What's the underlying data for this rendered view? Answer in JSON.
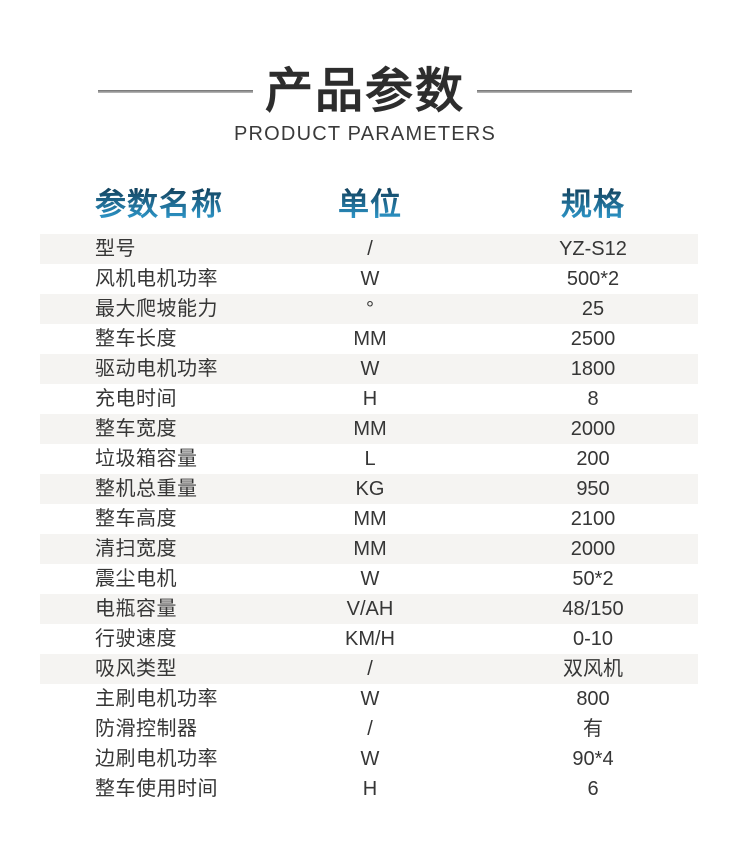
{
  "header": {
    "title": "产品参数",
    "subtitle": "PRODUCT PARAMETERS"
  },
  "table": {
    "columns": [
      "参数名称",
      "单位",
      "规格"
    ],
    "rows": [
      {
        "name": "型号",
        "unit": "/",
        "spec": "YZ-S12",
        "shaded": true
      },
      {
        "name": "风机电机功率",
        "unit": "W",
        "spec": "500*2",
        "shaded": false
      },
      {
        "name": "最大爬坡能力",
        "unit": "°",
        "spec": "25",
        "shaded": true
      },
      {
        "name": "整车长度",
        "unit": "MM",
        "spec": "2500",
        "shaded": false
      },
      {
        "name": "驱动电机功率",
        "unit": "W",
        "spec": "1800",
        "shaded": true
      },
      {
        "name": "充电时间",
        "unit": "H",
        "spec": "8",
        "shaded": false
      },
      {
        "name": "整车宽度",
        "unit": "MM",
        "spec": "2000",
        "shaded": true
      },
      {
        "name": "垃圾箱容量",
        "unit": "L",
        "spec": "200",
        "shaded": false
      },
      {
        "name": "整机总重量",
        "unit": "KG",
        "spec": "950",
        "shaded": true
      },
      {
        "name": "整车高度",
        "unit": "MM",
        "spec": "2100",
        "shaded": false
      },
      {
        "name": "清扫宽度",
        "unit": "MM",
        "spec": "2000",
        "shaded": true
      },
      {
        "name": "震尘电机",
        "unit": "W",
        "spec": "50*2",
        "shaded": false
      },
      {
        "name": "电瓶容量",
        "unit": "V/AH",
        "spec": "48/150",
        "shaded": true
      },
      {
        "name": "行驶速度",
        "unit": "KM/H",
        "spec": "0-10",
        "shaded": false
      },
      {
        "name": "吸风类型",
        "unit": "/",
        "spec": "双风机",
        "shaded": true
      },
      {
        "name": "主刷电机功率",
        "unit": "W",
        "spec": "800",
        "shaded": false
      },
      {
        "name": "防滑控制器",
        "unit": "/",
        "spec": "有",
        "shaded": false
      },
      {
        "name": "边刷电机功率",
        "unit": "W",
        "spec": "90*4",
        "shaded": false
      },
      {
        "name": "整车使用时间",
        "unit": "H",
        "spec": "6",
        "shaded": false
      }
    ]
  },
  "colors": {
    "title_text": "#2d2d2d",
    "body_text": "#363636",
    "stripe": "#f5f4f2",
    "divider_line": "#8a8a8a",
    "header_gradient_top": "#123f5a",
    "header_gradient_bottom": "#2f9fd4"
  }
}
